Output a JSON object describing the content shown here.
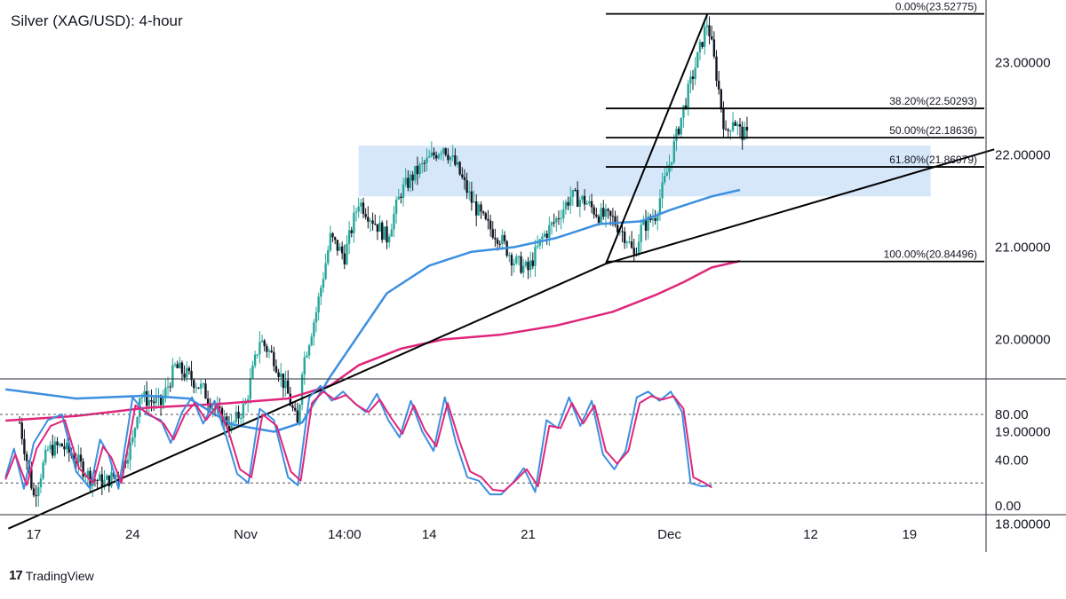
{
  "title": "Silver (XAG/USD): 4-hour",
  "brand": {
    "name": "TradingView",
    "mark": "17"
  },
  "colors": {
    "bull": "#26a69a",
    "bear": "#131722",
    "sma_fast": "#3d8fe0",
    "sma_slow": "#e0267b",
    "zone": "#cfe3f8",
    "stoch_k": "#3d8fe0",
    "stoch_d": "#e0267b",
    "trendline": "#000000"
  },
  "chart_data": [
    {
      "type": "line",
      "name": "price",
      "y_ticks": [
        "23.00000",
        "22.00000",
        "21.00000",
        "20.00000",
        "19.00000",
        "18.00000"
      ],
      "ylim": [
        17.8,
        23.75
      ],
      "x_ticks": [
        {
          "label": "17",
          "day": 17
        },
        {
          "label": "24",
          "day": 24
        },
        {
          "label": "Nov",
          "day": 32
        },
        {
          "label": "14:00",
          "day": 39
        },
        {
          "label": "14",
          "day": 45
        },
        {
          "label": "21",
          "day": 52
        },
        {
          "label": "Dec",
          "day": 62
        },
        {
          "label": "12",
          "day": 72
        },
        {
          "label": "19",
          "day": 79
        }
      ],
      "series": [
        {
          "values": [
            [
              16,
              19.1
            ],
            [
              17,
              18.3
            ],
            [
              18,
              18.8
            ],
            [
              19,
              18.85
            ],
            [
              20,
              18.7
            ],
            [
              21,
              18.5
            ],
            [
              22,
              18.45
            ],
            [
              23,
              18.55
            ],
            [
              24,
              18.9
            ],
            [
              24.5,
              19.4
            ],
            [
              25,
              19.35
            ],
            [
              26,
              19.3
            ],
            [
              27,
              19.7
            ],
            [
              28,
              19.6
            ],
            [
              29,
              19.45
            ],
            [
              30,
              19.2
            ],
            [
              31,
              19.05
            ],
            [
              32,
              19.3
            ],
            [
              33,
              20.0
            ],
            [
              34,
              19.8
            ],
            [
              35,
              19.4
            ],
            [
              35.7,
              19.05
            ],
            [
              36,
              19.7
            ],
            [
              37,
              20.3
            ],
            [
              38,
              21.1
            ],
            [
              39,
              20.9
            ],
            [
              40,
              21.5
            ],
            [
              41,
              21.3
            ],
            [
              42,
              21.1
            ],
            [
              43,
              21.6
            ],
            [
              44,
              21.8
            ],
            [
              45,
              21.95
            ],
            [
              46,
              22.1
            ],
            [
              47,
              21.85
            ],
            [
              48,
              21.5
            ],
            [
              49,
              21.25
            ],
            [
              50,
              21.1
            ],
            [
              51,
              20.85
            ],
            [
              52,
              20.75
            ],
            [
              53,
              21.1
            ],
            [
              54,
              21.3
            ],
            [
              55,
              21.55
            ],
            [
              56,
              21.5
            ],
            [
              57,
              21.35
            ],
            [
              58,
              21.3
            ],
            [
              59,
              21.1
            ],
            [
              59.5,
              20.9
            ],
            [
              60,
              21.2
            ],
            [
              61,
              21.35
            ],
            [
              62,
              21.9
            ],
            [
              63,
              22.5
            ],
            [
              64,
              23.05
            ],
            [
              64.7,
              23.45
            ],
            [
              65.3,
              22.9
            ],
            [
              66,
              22.2
            ],
            [
              66.5,
              22.4
            ],
            [
              67,
              22.25
            ],
            [
              67.5,
              22.2
            ]
          ]
        },
        {
          "name": "",
          "values": [
            [
              15,
              19.46
            ],
            [
              20,
              19.36
            ],
            [
              25,
              19.39
            ],
            [
              28,
              19.36
            ],
            [
              31,
              19.08
            ],
            [
              34,
              19.0
            ],
            [
              36,
              19.1
            ],
            [
              38,
              19.6
            ],
            [
              40,
              20.05
            ],
            [
              42,
              20.5
            ],
            [
              45,
              20.8
            ],
            [
              48,
              20.95
            ],
            [
              51,
              21.0
            ],
            [
              54,
              21.1
            ],
            [
              57,
              21.25
            ],
            [
              60,
              21.28
            ],
            [
              62,
              21.4
            ],
            [
              65,
              21.55
            ],
            [
              67,
              21.62
            ]
          ]
        },
        {
          "name": "",
          "values": [
            [
              15,
              19.12
            ],
            [
              20,
              19.17
            ],
            [
              25,
              19.26
            ],
            [
              30,
              19.3
            ],
            [
              35,
              19.36
            ],
            [
              38,
              19.5
            ],
            [
              40,
              19.72
            ],
            [
              43,
              19.9
            ],
            [
              46,
              20.0
            ],
            [
              50,
              20.05
            ],
            [
              54,
              20.15
            ],
            [
              58,
              20.3
            ],
            [
              61,
              20.48
            ],
            [
              63,
              20.62
            ],
            [
              65,
              20.78
            ],
            [
              67,
              20.85
            ]
          ]
        }
      ],
      "trendlines": [
        [
          [
            15.2,
            17.95
          ],
          [
            57.5,
            20.82
          ],
          [
            85,
            22.06
          ]
        ],
        [
          [
            57.5,
            20.82
          ],
          [
            64.7,
            23.52775
          ]
        ]
      ],
      "zone": {
        "x": [
          40,
          80.5
        ],
        "y": [
          21.55,
          22.1
        ]
      },
      "fib": {
        "x": [
          57.5,
          86
        ],
        "levels": [
          {
            "label": "0.00%(23.52775)",
            "price": 23.52775
          },
          {
            "label": "38.20%(22.50293)",
            "price": 22.50293
          },
          {
            "label": "50.00%(22.18636)",
            "price": 22.18636
          },
          {
            "label": "61.80%(21.86979)",
            "price": 21.86979
          },
          {
            "label": "100.00%(20.84496)",
            "price": 20.84496
          }
        ]
      }
    },
    {
      "type": "line",
      "name": "stochastic",
      "y_ticks": [
        "80.00",
        "40.00",
        "0.00"
      ],
      "ylim": [
        -5,
        112
      ],
      "dashed_levels": [
        80,
        20
      ],
      "series": [
        {
          "values": [
            [
              15,
              25
            ],
            [
              15.6,
              50
            ],
            [
              16.3,
              15
            ],
            [
              17,
              55
            ],
            [
              18,
              75
            ],
            [
              19,
              80
            ],
            [
              20,
              30
            ],
            [
              21,
              15
            ],
            [
              21.7,
              58
            ],
            [
              22.3,
              45
            ],
            [
              23,
              15
            ],
            [
              24,
              95
            ],
            [
              25,
              80
            ],
            [
              26,
              75
            ],
            [
              26.7,
              55
            ],
            [
              27.5,
              82
            ],
            [
              28.2,
              95
            ],
            [
              29,
              72
            ],
            [
              29.8,
              92
            ],
            [
              30.6,
              62
            ],
            [
              31.4,
              28
            ],
            [
              32.2,
              20
            ],
            [
              33,
              85
            ],
            [
              34,
              75
            ],
            [
              35,
              25
            ],
            [
              35.7,
              18
            ],
            [
              36.5,
              95
            ],
            [
              37.3,
              105
            ],
            [
              38.1,
              92
            ],
            [
              38.9,
              100
            ],
            [
              39.7,
              90
            ],
            [
              40.5,
              82
            ],
            [
              41.3,
              98
            ],
            [
              42.1,
              75
            ],
            [
              42.9,
              60
            ],
            [
              43.7,
              92
            ],
            [
              44.5,
              65
            ],
            [
              45.3,
              48
            ],
            [
              46.1,
              95
            ],
            [
              46.9,
              55
            ],
            [
              47.7,
              25
            ],
            [
              48.5,
              22
            ],
            [
              49.3,
              10
            ],
            [
              50.1,
              10
            ],
            [
              50.9,
              20
            ],
            [
              51.7,
              33
            ],
            [
              52.5,
              12
            ],
            [
              53.3,
              75
            ],
            [
              54.1,
              68
            ],
            [
              54.9,
              95
            ],
            [
              55.7,
              70
            ],
            [
              56.5,
              92
            ],
            [
              57.3,
              45
            ],
            [
              58.1,
              32
            ],
            [
              58.9,
              48
            ],
            [
              59.7,
              95
            ],
            [
              60.5,
              100
            ],
            [
              61.3,
              92
            ],
            [
              62.1,
              100
            ],
            [
              62.9,
              82
            ],
            [
              63.5,
              20
            ],
            [
              64.3,
              17
            ],
            [
              65,
              18
            ]
          ]
        },
        {
          "values": [
            [
              15,
              23
            ],
            [
              15.7,
              45
            ],
            [
              16.5,
              18
            ],
            [
              17.2,
              50
            ],
            [
              18.2,
              70
            ],
            [
              19.2,
              75
            ],
            [
              20.2,
              33
            ],
            [
              21.2,
              20
            ],
            [
              21.9,
              52
            ],
            [
              22.5,
              42
            ],
            [
              23.2,
              20
            ],
            [
              24.2,
              88
            ],
            [
              25.2,
              80
            ],
            [
              26.2,
              72
            ],
            [
              26.9,
              58
            ],
            [
              27.7,
              80
            ],
            [
              28.4,
              90
            ],
            [
              29.2,
              75
            ],
            [
              30,
              88
            ],
            [
              30.8,
              65
            ],
            [
              31.6,
              32
            ],
            [
              32.4,
              25
            ],
            [
              33.2,
              80
            ],
            [
              34.2,
              70
            ],
            [
              35.2,
              30
            ],
            [
              35.9,
              22
            ],
            [
              36.7,
              90
            ],
            [
              37.5,
              100
            ],
            [
              38.3,
              93
            ],
            [
              39.1,
              97
            ],
            [
              39.9,
              88
            ],
            [
              40.7,
              82
            ],
            [
              41.5,
              93
            ],
            [
              42.3,
              77
            ],
            [
              43.1,
              63
            ],
            [
              43.9,
              88
            ],
            [
              44.7,
              66
            ],
            [
              45.5,
              52
            ],
            [
              46.3,
              90
            ],
            [
              47.1,
              58
            ],
            [
              47.9,
              30
            ],
            [
              48.7,
              25
            ],
            [
              49.5,
              14
            ],
            [
              50.3,
              13
            ],
            [
              51.1,
              22
            ],
            [
              51.9,
              32
            ],
            [
              52.7,
              17
            ],
            [
              53.5,
              70
            ],
            [
              54.3,
              68
            ],
            [
              55.1,
              90
            ],
            [
              55.9,
              72
            ],
            [
              56.7,
              88
            ],
            [
              57.5,
              48
            ],
            [
              58.3,
              37
            ],
            [
              59.1,
              48
            ],
            [
              59.9,
              90
            ],
            [
              60.7,
              96
            ],
            [
              61.5,
              93
            ],
            [
              62.3,
              96
            ],
            [
              63,
              85
            ],
            [
              63.7,
              25
            ],
            [
              64.5,
              20
            ],
            [
              65,
              16
            ]
          ]
        }
      ]
    }
  ]
}
